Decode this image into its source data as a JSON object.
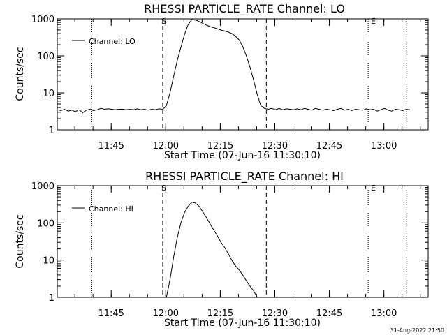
{
  "footer_timestamp": "31-Aug-2022 21:50",
  "chart_data": [
    {
      "type": "line",
      "title": "RHESSI PARTICLE_RATE Channel: LO",
      "xlabel": "Start Time (07-Jun-16 11:30:10)",
      "ylabel": "Counts/sec",
      "yscale": "log",
      "ylim": [
        1,
        1000
      ],
      "xlim_minutes": [
        0,
        102
      ],
      "x_tick_labels": [
        "11:45",
        "12:00",
        "12:15",
        "12:30",
        "12:45",
        "13:00"
      ],
      "y_tick_labels": [
        "1",
        "10",
        "100",
        "1000"
      ],
      "legend": {
        "label": "Channel: LO",
        "position": "top-left"
      },
      "markers": {
        "start": "S",
        "end": "E"
      },
      "series": [
        {
          "name": "Channel: LO",
          "x_minutes": [
            0,
            1,
            2,
            3,
            4,
            5,
            6,
            7,
            8,
            9,
            10,
            11,
            12,
            13,
            14,
            15,
            16,
            17,
            18,
            19,
            20,
            21,
            22,
            23,
            24,
            25,
            26,
            27,
            28,
            29,
            29.5,
            30,
            31,
            32,
            33,
            34,
            35,
            36,
            37,
            38,
            39,
            40,
            41,
            42,
            43,
            44,
            45,
            46,
            47,
            48,
            49,
            50,
            51,
            52,
            53,
            54,
            55,
            56,
            57,
            58,
            59,
            60,
            61,
            62,
            63,
            64,
            65,
            66,
            67,
            68,
            69,
            70,
            71,
            72,
            73,
            74,
            75,
            76,
            77,
            78,
            79,
            80,
            81,
            82,
            83,
            84,
            85,
            86,
            87,
            88,
            89,
            90,
            91,
            92,
            93,
            94,
            95,
            96,
            97
          ],
          "y": [
            3.5,
            3.3,
            3.6,
            3.2,
            3.4,
            3.1,
            3.5,
            2.9,
            3.4,
            3.6,
            3.3,
            3.5,
            3.8,
            3.6,
            3.7,
            3.6,
            3.5,
            3.6,
            3.6,
            3.5,
            3.6,
            3.5,
            3.7,
            3.5,
            3.6,
            3.4,
            3.6,
            3.5,
            3.7,
            3.6,
            4.0,
            4.5,
            10,
            28,
            75,
            170,
            380,
            700,
            950,
            930,
            850,
            760,
            680,
            620,
            580,
            540,
            500,
            470,
            440,
            400,
            340,
            270,
            180,
            100,
            50,
            22,
            9,
            4.5,
            3.8,
            3.6,
            3.8,
            3.5,
            3.8,
            3.5,
            3.7,
            3.6,
            3.5,
            3.7,
            3.5,
            3.8,
            3.6,
            3.4,
            3.8,
            3.6,
            3.4,
            3.6,
            3.5,
            3.3,
            3.6,
            3.8,
            3.4,
            3.6,
            3.3,
            3.6,
            3.5,
            3.4,
            3.7,
            3.5,
            3.6,
            3.2,
            3.5,
            3.8,
            3.4,
            3.2,
            3.6,
            3.5,
            3.3,
            3.6,
            3.5
          ]
        }
      ]
    },
    {
      "type": "line",
      "title": "RHESSI PARTICLE_RATE Channel: HI",
      "xlabel": "Start Time (07-Jun-16 11:30:10)",
      "ylabel": "Counts/sec",
      "yscale": "log",
      "ylim": [
        1,
        1000
      ],
      "xlim_minutes": [
        0,
        102
      ],
      "x_tick_labels": [
        "11:45",
        "12:00",
        "12:15",
        "12:30",
        "12:45",
        "13:00"
      ],
      "y_tick_labels": [
        "1",
        "10",
        "100",
        "1000"
      ],
      "legend": {
        "label": "Channel: HI",
        "position": "top-left"
      },
      "markers": {
        "start": "S",
        "end": "E"
      },
      "series": [
        {
          "name": "Channel: HI",
          "x_minutes": [
            30,
            31,
            32,
            33,
            34,
            35,
            36,
            37,
            38,
            39,
            40,
            41,
            42,
            43,
            44,
            45,
            46,
            47,
            48,
            49,
            50,
            51,
            52,
            53,
            54,
            55
          ],
          "y": [
            1,
            3,
            12,
            40,
            100,
            190,
            280,
            360,
            340,
            280,
            200,
            140,
            95,
            65,
            45,
            30,
            22,
            15,
            10,
            7,
            5.5,
            4,
            2.8,
            2,
            1.5,
            1
          ]
        }
      ]
    }
  ]
}
